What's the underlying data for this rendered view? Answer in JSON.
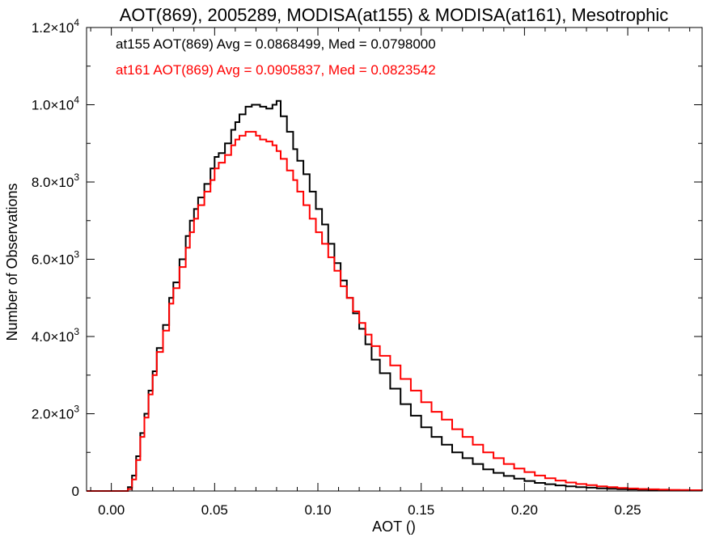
{
  "chart_data": {
    "type": "line",
    "title": "AOT(869), 2005289, MODISA(at155) & MODISA(at161), Mesotrophic",
    "xlabel": "AOT ()",
    "ylabel": "Number of Observations",
    "xlim": [
      -0.012,
      0.286
    ],
    "ylim": [
      0,
      12000
    ],
    "grid": false,
    "x_ticks": [
      {
        "value": 0.0,
        "label": "0.00"
      },
      {
        "value": 0.05,
        "label": "0.05"
      },
      {
        "value": 0.1,
        "label": "0.10"
      },
      {
        "value": 0.15,
        "label": "0.15"
      },
      {
        "value": 0.2,
        "label": "0.20"
      },
      {
        "value": 0.25,
        "label": "0.25"
      }
    ],
    "y_ticks": [
      {
        "value": 0,
        "mantissa": "0",
        "exponent": ""
      },
      {
        "value": 2000,
        "mantissa": "2.0",
        "exponent": "3"
      },
      {
        "value": 4000,
        "mantissa": "4.0",
        "exponent": "3"
      },
      {
        "value": 6000,
        "mantissa": "6.0",
        "exponent": "3"
      },
      {
        "value": 8000,
        "mantissa": "8.0",
        "exponent": "3"
      },
      {
        "value": 10000,
        "mantissa": "1.0",
        "exponent": "4"
      },
      {
        "value": 12000,
        "mantissa": "1.2",
        "exponent": "4"
      }
    ],
    "annotations": [
      {
        "text": "at155 AOT(869) Avg = 0.0868499, Med = 0.0798000",
        "color": "#000000"
      },
      {
        "text": "at161 AOT(869) Avg = 0.0905837, Med = 0.0823542",
        "color": "#ff0000"
      }
    ],
    "series": [
      {
        "color": "#000000",
        "x": [
          -0.012,
          0.005,
          0.008,
          0.01,
          0.012,
          0.014,
          0.016,
          0.018,
          0.02,
          0.022,
          0.025,
          0.028,
          0.03,
          0.033,
          0.036,
          0.038,
          0.04,
          0.042,
          0.045,
          0.048,
          0.05,
          0.052,
          0.055,
          0.058,
          0.06,
          0.062,
          0.065,
          0.068,
          0.07,
          0.072,
          0.075,
          0.078,
          0.08,
          0.082,
          0.085,
          0.088,
          0.09,
          0.093,
          0.096,
          0.099,
          0.102,
          0.105,
          0.108,
          0.111,
          0.114,
          0.117,
          0.12,
          0.123,
          0.126,
          0.13,
          0.135,
          0.14,
          0.145,
          0.15,
          0.155,
          0.16,
          0.165,
          0.17,
          0.175,
          0.18,
          0.185,
          0.19,
          0.195,
          0.2,
          0.205,
          0.21,
          0.215,
          0.22,
          0.225,
          0.23,
          0.235,
          0.24,
          0.245,
          0.25,
          0.255,
          0.26,
          0.265,
          0.27,
          0.275,
          0.28,
          0.286
        ],
        "y": [
          0,
          0,
          100,
          400,
          900,
          1500,
          2000,
          2600,
          3100,
          3700,
          4300,
          5000,
          5400,
          6000,
          6600,
          7000,
          7300,
          7600,
          7950,
          8350,
          8650,
          8750,
          9000,
          9350,
          9550,
          9750,
          9950,
          10000,
          10000,
          9950,
          9900,
          10000,
          10100,
          9700,
          9300,
          8850,
          8550,
          8200,
          7750,
          7300,
          6900,
          6400,
          5900,
          5450,
          5000,
          4600,
          4200,
          3800,
          3400,
          3050,
          2650,
          2250,
          1950,
          1650,
          1400,
          1200,
          1000,
          850,
          700,
          560,
          470,
          390,
          320,
          260,
          210,
          175,
          145,
          120,
          100,
          85,
          70,
          58,
          48,
          40,
          33,
          28,
          23,
          19,
          16,
          13,
          11
        ]
      },
      {
        "color": "#ff0000",
        "x": [
          -0.012,
          0.005,
          0.008,
          0.01,
          0.012,
          0.014,
          0.016,
          0.018,
          0.02,
          0.022,
          0.025,
          0.028,
          0.03,
          0.033,
          0.036,
          0.038,
          0.04,
          0.042,
          0.045,
          0.048,
          0.05,
          0.052,
          0.055,
          0.058,
          0.06,
          0.062,
          0.065,
          0.068,
          0.07,
          0.072,
          0.075,
          0.078,
          0.08,
          0.082,
          0.085,
          0.088,
          0.09,
          0.093,
          0.096,
          0.099,
          0.102,
          0.105,
          0.108,
          0.111,
          0.114,
          0.117,
          0.12,
          0.123,
          0.126,
          0.13,
          0.135,
          0.14,
          0.145,
          0.15,
          0.155,
          0.16,
          0.165,
          0.17,
          0.175,
          0.18,
          0.185,
          0.19,
          0.195,
          0.2,
          0.205,
          0.21,
          0.215,
          0.22,
          0.225,
          0.23,
          0.235,
          0.24,
          0.245,
          0.25,
          0.255,
          0.26,
          0.265,
          0.27,
          0.275,
          0.28,
          0.286
        ],
        "y": [
          0,
          0,
          50,
          300,
          800,
          1400,
          1900,
          2500,
          3000,
          3600,
          4150,
          4850,
          5250,
          5800,
          6300,
          6700,
          7050,
          7400,
          7750,
          8050,
          8350,
          8500,
          8700,
          8950,
          9100,
          9200,
          9300,
          9300,
          9200,
          9100,
          9050,
          8950,
          8800,
          8600,
          8300,
          8050,
          7750,
          7400,
          7050,
          6700,
          6400,
          6050,
          5700,
          5300,
          5000,
          4650,
          4350,
          4050,
          3750,
          3500,
          3250,
          2900,
          2600,
          2300,
          2050,
          1850,
          1600,
          1400,
          1200,
          1000,
          850,
          700,
          580,
          490,
          400,
          330,
          270,
          220,
          180,
          150,
          120,
          100,
          80,
          65,
          53,
          45,
          37,
          30,
          25,
          20,
          17
        ]
      }
    ]
  }
}
